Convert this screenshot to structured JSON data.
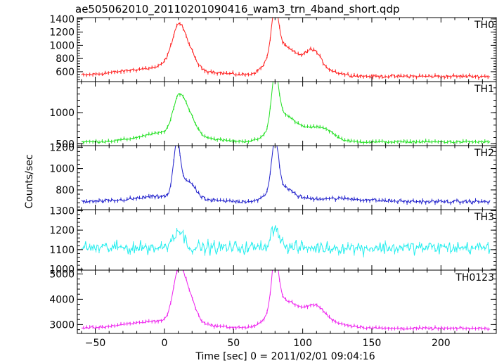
{
  "chart_data": {
    "type": "line",
    "title": "ae505062010_20110201090416_wam3_trn_4band_short.qdp",
    "xlabel": "Time [sec] 0 = 2011/02/01 09:04:16",
    "ylabel": "Counts/sec",
    "xlim": [
      -63,
      240
    ],
    "x_ticks": [
      -50,
      0,
      50,
      100,
      150,
      200
    ],
    "x_tick_labels": [
      "−50",
      "0",
      "50",
      "100",
      "150",
      "200"
    ],
    "grid": false,
    "panels": [
      {
        "name": "TH0",
        "color": "#ff2020",
        "ylim": [
          450,
          1420
        ],
        "y_ticks": [
          600,
          800,
          1000,
          1200,
          1400
        ],
        "y_tick_labels": [
          "600",
          "800",
          "1000",
          "1200",
          "1400"
        ],
        "baseline": 530,
        "noise": 22,
        "bumps": [
          [
            0,
            30,
            130
          ],
          [
            10,
            4,
            380
          ],
          [
            17,
            5,
            280
          ],
          [
            8,
            6,
            200
          ],
          [
            80,
            2.5,
            650
          ],
          [
            82,
            8,
            300
          ],
          [
            95,
            12,
            260
          ],
          [
            108,
            5,
            220
          ],
          [
            118,
            10,
            60
          ]
        ]
      },
      {
        "name": "TH1",
        "color": "#22e022",
        "ylim": [
          470,
          1500
        ],
        "y_ticks": [
          500,
          1000
        ],
        "y_tick_labels": [
          "500",
          "1000"
        ],
        "baseline": 530,
        "noise": 18,
        "bumps": [
          [
            5,
            20,
            160
          ],
          [
            10,
            4,
            480
          ],
          [
            17,
            5,
            330
          ],
          [
            80,
            2.5,
            780
          ],
          [
            84,
            7,
            300
          ],
          [
            97,
            14,
            230
          ],
          [
            116,
            7,
            130
          ]
        ]
      },
      {
        "name": "TH2",
        "color": "#2222cc",
        "ylim": [
          615,
          1215
        ],
        "y_ticks": [
          800,
          1000,
          1200
        ],
        "y_tick_labels": [
          "800",
          "1000",
          "1200"
        ],
        "baseline": 690,
        "noise": 16,
        "bumps": [
          [
            9,
            2.5,
            480
          ],
          [
            17,
            5,
            160
          ],
          [
            0,
            20,
            50
          ],
          [
            80,
            2.5,
            470
          ],
          [
            84,
            8,
            130
          ],
          [
            120,
            25,
            30
          ]
        ]
      },
      {
        "name": "TH3",
        "color": "#22eeee",
        "ylim": [
          995,
          1305
        ],
        "y_ticks": [
          1000,
          1100,
          1200,
          1300
        ],
        "y_tick_labels": [
          "1000",
          "1100",
          "1200",
          "1300"
        ],
        "baseline": 1110,
        "noise": 32,
        "bumps": [
          [
            10,
            4,
            90
          ],
          [
            80,
            3,
            110
          ]
        ]
      },
      {
        "name": "TH0123",
        "color": "#ee22ee",
        "ylim": [
          2650,
          5150
        ],
        "y_ticks": [
          3000,
          4000,
          5000
        ],
        "y_tick_labels": [
          "3000",
          "4000",
          "5000"
        ],
        "baseline": 2850,
        "noise": 45,
        "bumps": [
          [
            0,
            25,
            300
          ],
          [
            10,
            4,
            1700
          ],
          [
            17,
            5,
            1100
          ],
          [
            80,
            2.5,
            2000
          ],
          [
            84,
            8,
            700
          ],
          [
            97,
            14,
            600
          ],
          [
            110,
            6,
            400
          ],
          [
            120,
            15,
            150
          ]
        ]
      }
    ]
  }
}
